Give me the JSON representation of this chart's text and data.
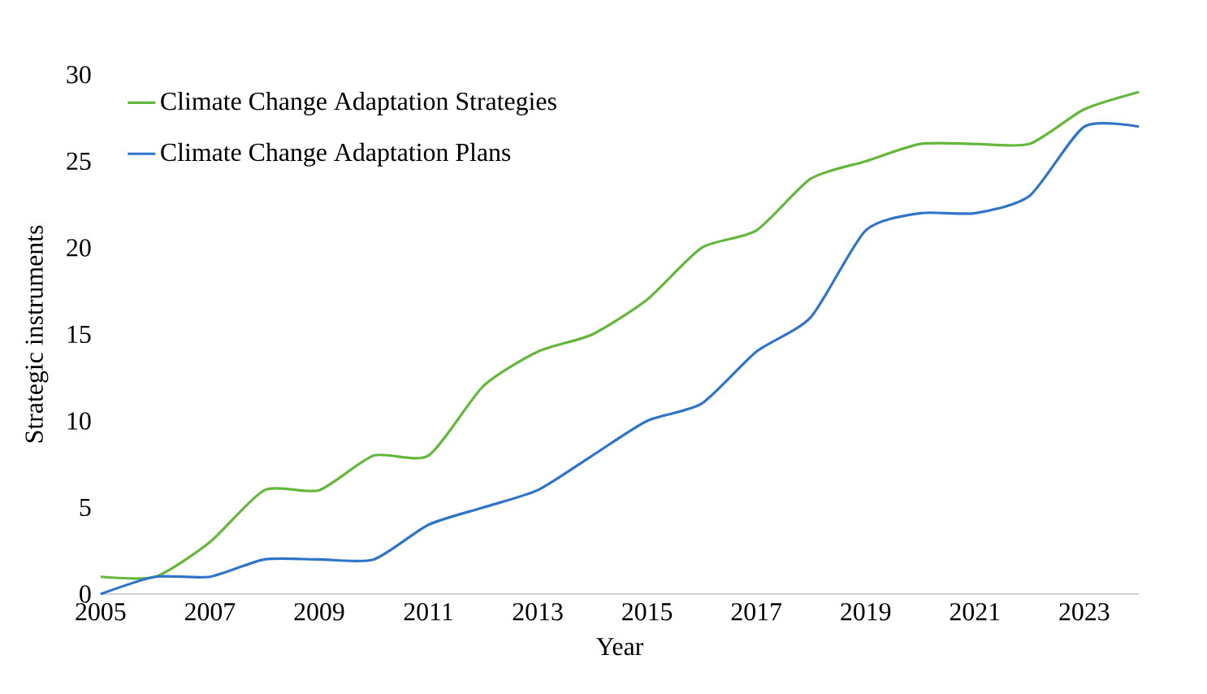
{
  "chart_data": {
    "type": "line",
    "xlabel": "Year",
    "ylabel": "Strategic instruments",
    "x": [
      2005,
      2006,
      2007,
      2008,
      2009,
      2010,
      2011,
      2012,
      2013,
      2014,
      2015,
      2016,
      2017,
      2018,
      2019,
      2020,
      2021,
      2022,
      2023,
      2024
    ],
    "series": [
      {
        "name": "Climate Change Adaptation Strategies",
        "color": "#63b83c",
        "values": [
          1,
          1,
          3,
          6,
          6,
          8,
          8,
          12,
          14,
          15,
          17,
          20,
          21,
          24,
          25,
          26,
          26,
          26,
          28,
          29
        ]
      },
      {
        "name": "Climate Change Adaptation Plans",
        "color": "#2f74c8",
        "values": [
          0,
          1,
          1,
          2,
          2,
          2,
          4,
          5,
          6,
          8,
          10,
          11,
          14,
          16,
          21,
          22,
          22,
          23,
          27,
          27
        ]
      }
    ],
    "xlim": [
      2005,
      2024
    ],
    "ylim": [
      0,
      30
    ],
    "xticks": [
      2005,
      2007,
      2009,
      2011,
      2013,
      2015,
      2017,
      2019,
      2021,
      2023
    ],
    "yticks": [
      0,
      5,
      10,
      15,
      20,
      25,
      30
    ],
    "legend": "top left"
  }
}
